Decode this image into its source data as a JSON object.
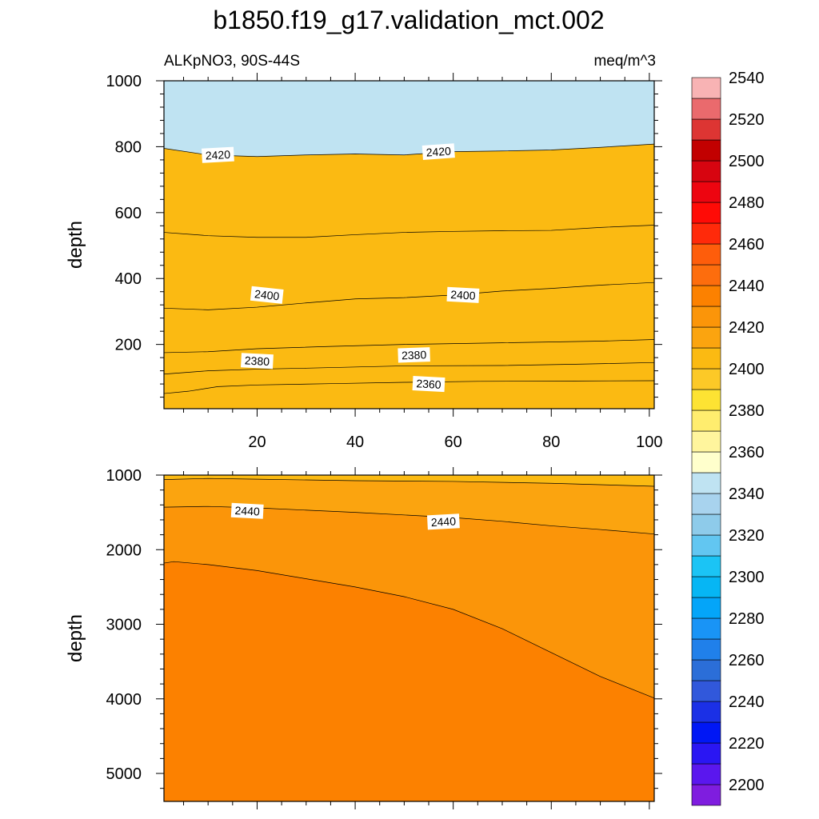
{
  "figure": {
    "title": "b1850.f19_g17.validation_mct.002",
    "left_label": "ALKpNO3, 90S-44S",
    "units_label": "meq/m^3"
  },
  "chart_data": [
    {
      "type": "contour",
      "panel": "upper",
      "ylabel": "depth",
      "xlabel": "",
      "xlim": [
        1,
        101
      ],
      "ylim": [
        1000,
        5
      ],
      "x_ticks": [
        20,
        40,
        60,
        80,
        100
      ],
      "y_ticks": [
        200,
        400,
        600,
        800,
        1000
      ],
      "fill_below_first": "#bfe3f2",
      "contours": [
        {
          "level": 2360,
          "fill": "#ffffcc",
          "points": [
            [
              1,
              51
            ],
            [
              6,
              58
            ],
            [
              12,
              72
            ],
            [
              20,
              77
            ],
            [
              35,
              81
            ],
            [
              50,
              85
            ],
            [
              65,
              88
            ],
            [
              85,
              89
            ],
            [
              101,
              90
            ]
          ]
        },
        {
          "level": 2370,
          "fill": "#fff59d",
          "points": [
            [
              1,
              110
            ],
            [
              10,
              120
            ],
            [
              20,
              125
            ],
            [
              30,
              128
            ],
            [
              50,
              135
            ],
            [
              70,
              136
            ],
            [
              85,
              140
            ],
            [
              101,
              145
            ]
          ]
        },
        {
          "level": 2380,
          "fill": "#ffed6e",
          "points": [
            [
              1,
              175
            ],
            [
              10,
              178
            ],
            [
              20,
              187
            ],
            [
              35,
              194
            ],
            [
              50,
              200
            ],
            [
              70,
              205
            ],
            [
              90,
              210
            ],
            [
              101,
              215
            ]
          ]
        },
        {
          "level": 2390,
          "fill": "#fde333",
          "points": [
            [
              1,
              310
            ],
            [
              10,
              305
            ],
            [
              20,
              313
            ],
            [
              30,
              326
            ],
            [
              40,
              338
            ],
            [
              50,
              342
            ],
            [
              60,
              350
            ],
            [
              70,
              362
            ],
            [
              80,
              370
            ],
            [
              90,
              380
            ],
            [
              101,
              388
            ]
          ]
        },
        {
          "level": 2400,
          "fill": "#fcc927",
          "points": [
            [
              1,
              540
            ],
            [
              10,
              530
            ],
            [
              20,
              525
            ],
            [
              30,
              525
            ],
            [
              40,
              533
            ],
            [
              50,
              540
            ],
            [
              60,
              543
            ],
            [
              70,
              545
            ],
            [
              80,
              546
            ],
            [
              90,
              555
            ],
            [
              101,
              562
            ]
          ]
        },
        {
          "level": 2420,
          "fill": "#fbba12",
          "points": [
            [
              1,
              795
            ],
            [
              10,
              775
            ],
            [
              20,
              770
            ],
            [
              30,
              775
            ],
            [
              40,
              778
            ],
            [
              50,
              775
            ],
            [
              60,
              785
            ],
            [
              70,
              787
            ],
            [
              80,
              790
            ],
            [
              90,
              798
            ],
            [
              101,
              808
            ]
          ]
        }
      ],
      "labels": [
        {
          "text": "2360",
          "x": 55,
          "y": 80,
          "angle": 3
        },
        {
          "text": "2380",
          "x": 20,
          "y": 150,
          "angle": 3
        },
        {
          "text": "2380",
          "x": 52,
          "y": 168,
          "angle": -2
        },
        {
          "text": "2400",
          "x": 22,
          "y": 350,
          "angle": 6
        },
        {
          "text": "2400",
          "x": 62,
          "y": 350,
          "angle": 3
        },
        {
          "text": "2420",
          "x": 12,
          "y": 775,
          "angle": -3
        },
        {
          "text": "2420",
          "x": 57,
          "y": 785,
          "angle": -4
        }
      ]
    },
    {
      "type": "contour",
      "panel": "lower",
      "ylabel": "depth",
      "xlabel": "",
      "xlim": [
        1,
        101
      ],
      "ylim": [
        1000,
        5375
      ],
      "y_ticks": [
        1000,
        2000,
        3000,
        4000,
        5000
      ],
      "fill_below_first": "#fbba12",
      "contours": [
        {
          "level": 2430,
          "fill": "#fba40f",
          "points": [
            [
              1,
              1060
            ],
            [
              10,
              1045
            ],
            [
              20,
              1055
            ],
            [
              40,
              1075
            ],
            [
              60,
              1085
            ],
            [
              80,
              1110
            ],
            [
              101,
              1150
            ]
          ]
        },
        {
          "level": 2440,
          "fill": "#fb9509",
          "points": [
            [
              1,
              1430
            ],
            [
              10,
              1420
            ],
            [
              20,
              1440
            ],
            [
              40,
              1500
            ],
            [
              60,
              1570
            ],
            [
              70,
              1620
            ],
            [
              80,
              1680
            ],
            [
              90,
              1730
            ],
            [
              101,
              1790
            ]
          ]
        },
        {
          "level": 2450,
          "fill": "#fc8100",
          "points": [
            [
              1,
              2180
            ],
            [
              3,
              2160
            ],
            [
              10,
              2200
            ],
            [
              20,
              2280
            ],
            [
              30,
              2390
            ],
            [
              40,
              2500
            ],
            [
              50,
              2630
            ],
            [
              60,
              2800
            ],
            [
              70,
              3060
            ],
            [
              80,
              3380
            ],
            [
              90,
              3700
            ],
            [
              101,
              3990
            ]
          ]
        }
      ],
      "labels": [
        {
          "text": "2440",
          "x": 18,
          "y": 1480,
          "angle": 3
        },
        {
          "text": "2440",
          "x": 58,
          "y": 1625,
          "angle": -3
        }
      ]
    }
  ],
  "colorbar": {
    "labels": [
      "2200",
      "2220",
      "2240",
      "2260",
      "2280",
      "2300",
      "2320",
      "2340",
      "2360",
      "2380",
      "2400",
      "2420",
      "2440",
      "2460",
      "2480",
      "2500",
      "2520",
      "2540"
    ],
    "colors": [
      "#7f1ddf",
      "#5a17ee",
      "#2a16f3",
      "#0017f5",
      "#1b30e6",
      "#3158db",
      "#2b6ed8",
      "#2080ea",
      "#1994f6",
      "#04a5f9",
      "#06b6f4",
      "#1bc4f5",
      "#62c6f1",
      "#8ecbea",
      "#a8d3ee",
      "#bfe3f2",
      "#ffffcc",
      "#fff59d",
      "#ffed6e",
      "#fde333",
      "#fcc927",
      "#fbba12",
      "#fba40f",
      "#fb9509",
      "#fc8100",
      "#fd6d0d",
      "#fe5d0b",
      "#ff2a0a",
      "#ff0b06",
      "#ed0510",
      "#d70510",
      "#c20000",
      "#dd3533",
      "#ea6a6d",
      "#f8b3b4"
    ]
  }
}
